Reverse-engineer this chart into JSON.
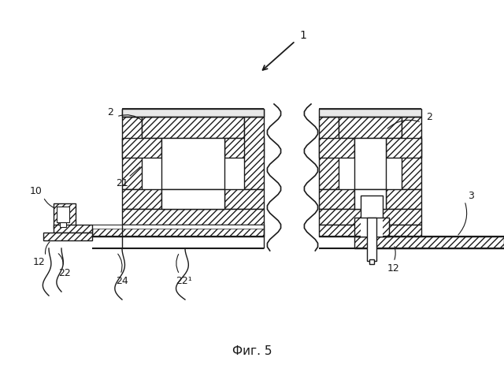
{
  "title": "Фиг. 5",
  "background_color": "#ffffff",
  "line_color": "#1a1a1a",
  "figsize": [
    6.4,
    4.63
  ],
  "dpi": 100
}
